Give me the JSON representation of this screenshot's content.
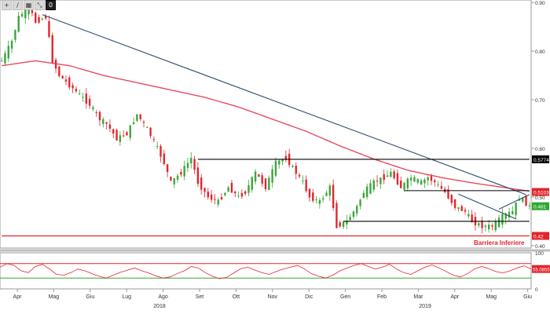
{
  "toolbar": {
    "buttons": [
      {
        "name": "plus-icon",
        "glyph": "+"
      },
      {
        "name": "pencil-icon",
        "glyph": "∕"
      },
      {
        "name": "grid-icon",
        "glyph": "▦"
      },
      {
        "name": "expand-icon",
        "glyph": "⤡"
      },
      {
        "name": "menu-icon",
        "glyph": "0"
      }
    ]
  },
  "chart_data": {
    "type": "candlestick",
    "x_ticks": [
      "Apr",
      "Mag",
      "Giu",
      "Lug",
      "Ago",
      "Set",
      "Ott",
      "Nov",
      "Dic",
      "Gen",
      "Feb",
      "Mar",
      "Apr",
      "Mag",
      "Giu"
    ],
    "years": [
      "2018",
      "2019"
    ],
    "ylim": [
      0.395,
      0.905
    ],
    "y_ticks": [
      {
        "v": 0.9,
        "label": "0.90"
      },
      {
        "v": 0.8,
        "label": "0.80"
      },
      {
        "v": 0.7,
        "label": "0.70"
      },
      {
        "v": 0.6,
        "label": "0.60"
      },
      {
        "v": 0.5,
        "label": "0.50"
      },
      {
        "v": 0.4,
        "label": "0.40"
      }
    ],
    "price_points": [
      [
        0,
        0.78
      ],
      [
        3,
        0.82
      ],
      [
        5,
        0.87
      ],
      [
        8,
        0.89
      ],
      [
        10,
        0.86
      ],
      [
        13,
        0.87
      ],
      [
        15,
        0.78
      ],
      [
        17,
        0.75
      ],
      [
        20,
        0.73
      ],
      [
        23,
        0.71
      ],
      [
        26,
        0.69
      ],
      [
        29,
        0.66
      ],
      [
        31,
        0.65
      ],
      [
        34,
        0.62
      ],
      [
        37,
        0.63
      ],
      [
        40,
        0.67
      ],
      [
        43,
        0.64
      ],
      [
        46,
        0.6
      ],
      [
        48,
        0.57
      ],
      [
        50,
        0.53
      ],
      [
        53,
        0.55
      ],
      [
        56,
        0.58
      ],
      [
        58,
        0.53
      ],
      [
        61,
        0.5
      ],
      [
        64,
        0.49
      ],
      [
        67,
        0.52
      ],
      [
        70,
        0.5
      ],
      [
        72,
        0.51
      ],
      [
        75,
        0.55
      ],
      [
        78,
        0.52
      ],
      [
        81,
        0.57
      ],
      [
        84,
        0.58
      ],
      [
        87,
        0.55
      ],
      [
        89,
        0.53
      ],
      [
        91,
        0.5
      ],
      [
        94,
        0.49
      ],
      [
        97,
        0.52
      ],
      [
        99,
        0.44
      ],
      [
        102,
        0.45
      ],
      [
        105,
        0.48
      ],
      [
        107,
        0.51
      ],
      [
        110,
        0.53
      ],
      [
        113,
        0.54
      ],
      [
        115,
        0.55
      ],
      [
        118,
        0.52
      ],
      [
        121,
        0.54
      ],
      [
        124,
        0.53
      ],
      [
        126,
        0.54
      ],
      [
        128,
        0.53
      ],
      [
        131,
        0.51
      ],
      [
        134,
        0.48
      ],
      [
        137,
        0.47
      ],
      [
        139,
        0.45
      ],
      [
        142,
        0.44
      ],
      [
        145,
        0.44
      ],
      [
        148,
        0.46
      ],
      [
        151,
        0.47
      ],
      [
        153,
        0.5
      ],
      [
        156,
        0.48
      ]
    ],
    "ma200": [
      [
        0,
        0.77
      ],
      [
        10,
        0.78
      ],
      [
        20,
        0.77
      ],
      [
        30,
        0.75
      ],
      [
        40,
        0.735
      ],
      [
        50,
        0.72
      ],
      [
        60,
        0.705
      ],
      [
        70,
        0.685
      ],
      [
        80,
        0.66
      ],
      [
        90,
        0.635
      ],
      [
        100,
        0.605
      ],
      [
        110,
        0.578
      ],
      [
        120,
        0.555
      ],
      [
        130,
        0.54
      ],
      [
        140,
        0.528
      ],
      [
        150,
        0.518
      ],
      [
        156,
        0.512
      ]
    ],
    "lines": [
      {
        "name": "downtrend-line",
        "color": "#2b4a6f",
        "x1": 12,
        "y1": 0.875,
        "x2": 155,
        "y2": 0.505
      },
      {
        "name": "resistance-line",
        "color": "#000000",
        "x1": 58,
        "y1": 0.5774,
        "x2": 156,
        "y2": 0.5774
      },
      {
        "name": "inner-resistance-line",
        "color": "#000000",
        "x1": 119,
        "y1": 0.513,
        "x2": 156,
        "y2": 0.513
      },
      {
        "name": "support-line",
        "color": "#000000",
        "x1": 101,
        "y1": 0.45,
        "x2": 156,
        "y2": 0.45
      },
      {
        "name": "barrier-line",
        "color": "#e3242b",
        "x1": 0,
        "y1": 0.42,
        "x2": 156,
        "y2": 0.42
      },
      {
        "name": "short-trend-line-1",
        "color": "#2b4a6f",
        "x1": 135,
        "y1": 0.506,
        "x2": 152,
        "y2": 0.455
      },
      {
        "name": "short-trend-line-2",
        "color": "#2b4a6f",
        "x1": 147,
        "y1": 0.475,
        "x2": 156,
        "y2": 0.505
      }
    ],
    "price_labels": [
      {
        "label": "0.5774",
        "v": 0.5774,
        "bg": "#000000",
        "fg": "#ffffff"
      },
      {
        "label": "0.5103",
        "v": 0.5103,
        "bg": "#e3242b",
        "fg": "#ffffff"
      },
      {
        "label": "0.481",
        "v": 0.481,
        "bg": "#2ea82e",
        "fg": "#ffffff"
      },
      {
        "label": "0.42",
        "v": 0.42,
        "bg": "#e3242b",
        "fg": "#ffffff"
      }
    ],
    "annotation": "Barriera Inferiere",
    "indicator": {
      "ylim": [
        0,
        100
      ],
      "y_ticks": [
        "100",
        "0"
      ],
      "overbought": 70,
      "oversold": 30,
      "last_label": "55.0855",
      "values": [
        60,
        70,
        65,
        50,
        45,
        62,
        68,
        55,
        40,
        38,
        45,
        55,
        50,
        42,
        35,
        30,
        38,
        46,
        52,
        58,
        50,
        44,
        36,
        30,
        33,
        42,
        50,
        62,
        58,
        45,
        35,
        28,
        32,
        44,
        56,
        60,
        52,
        45,
        40,
        48,
        55,
        60,
        65,
        55,
        42,
        35,
        30,
        38,
        50,
        58,
        65,
        70,
        62,
        55,
        60,
        68,
        55,
        45,
        40,
        50,
        60,
        66,
        58,
        48,
        38,
        33,
        42,
        55,
        62,
        56,
        48,
        44,
        50,
        58,
        64,
        55
      ]
    },
    "colors": {
      "up": "#3aa53a",
      "down": "#e3242b",
      "ma": "#e84a5f",
      "grid": "#d8d8d8"
    }
  }
}
